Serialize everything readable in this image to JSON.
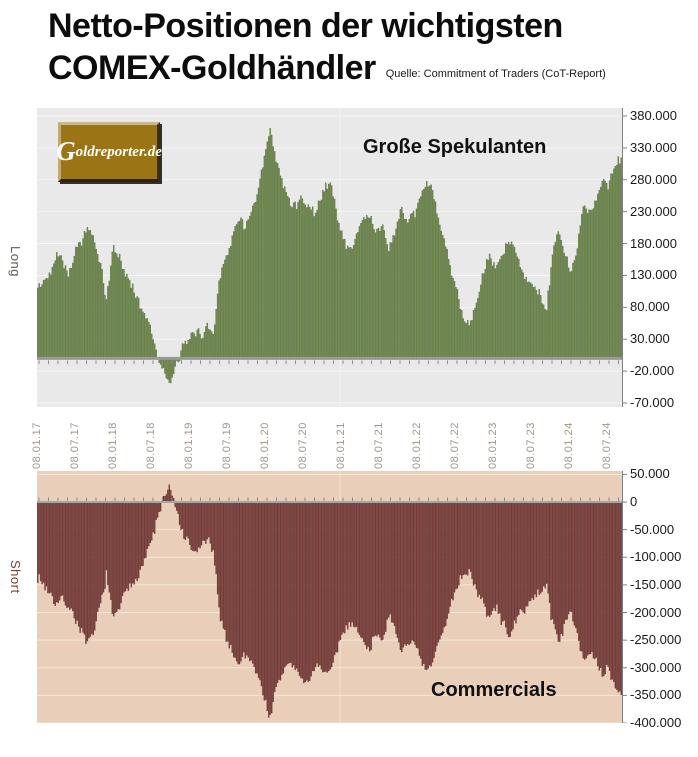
{
  "title": {
    "line1": "Netto-Positionen der wichtigsten",
    "line2": "COMEX-Goldhändler",
    "source": "Quelle: Commitment of Traders (CoT-Report)"
  },
  "logo": {
    "text_g": "G",
    "text_rest": "oldreporter.de"
  },
  "charts": {
    "top": {
      "side_label": "Long",
      "annotation": "Große Spekulanten",
      "bg_color": "#e9e9e9",
      "grid_color": "#f6f6f6",
      "bar_fill": "#708b4b",
      "bar_stroke": "#4d6434",
      "zero_line_color": "#999999",
      "axis_tick_labels": [
        "380.000",
        "330.000",
        "280.000",
        "230.000",
        "180.000",
        "130.000",
        "80.000",
        "30.000",
        "-20.000",
        "-70.000"
      ],
      "axis_tick_values": [
        380,
        330,
        280,
        230,
        180,
        130,
        80,
        30,
        -20,
        -70
      ]
    },
    "bottom": {
      "side_label": "Short",
      "annotation": "Commercials",
      "bg_color": "#e9cfb9",
      "grid_color": "#f5e7d8",
      "bar_fill": "#7d3d3b",
      "bar_stroke": "#5a2b2a",
      "zero_line_color": "#a6a6a6",
      "axis_tick_labels": [
        "50.000",
        "0",
        "-50.000",
        "-100.000",
        "-150.000",
        "-200.000",
        "-250.000",
        "-300.000",
        "-350.000",
        "-400.000"
      ],
      "axis_tick_values": [
        50,
        0,
        -50,
        -100,
        -150,
        -200,
        -250,
        -300,
        -350,
        -400
      ]
    }
  },
  "x_axis": {
    "labels": [
      "08.01.17",
      "08.07.17",
      "08.01.18",
      "08.07.18",
      "08.01.19",
      "08.07.19",
      "08.01.20",
      "08.07.20",
      "08.01.21",
      "08.07.21",
      "08.01.22",
      "08.07.22",
      "08.01.23",
      "08.07.23",
      "08.01.24",
      "08.07.24"
    ]
  },
  "chart_data": {
    "type": "bar",
    "unit": "contracts (values in thousands)",
    "frequency": "weekly bars; values below are monthly keypoints read from the chart",
    "months_start": "2017-01",
    "months_end": "2024-10",
    "x_range": [
      "08.01.17",
      "late 2024"
    ],
    "top_ylim_thousands": [
      -70,
      380
    ],
    "bottom_ylim_thousands": [
      -400,
      50
    ],
    "series": [
      {
        "name": "Große Spekulanten (net long)",
        "color": "#708b4b",
        "monthly_values_thousands": [
          110,
          120,
          133,
          167,
          155,
          130,
          170,
          185,
          205,
          185,
          145,
          90,
          175,
          160,
          130,
          117,
          91,
          70,
          50,
          10,
          -20,
          -42,
          -15,
          15,
          25,
          45,
          35,
          50,
          40,
          130,
          160,
          185,
          225,
          205,
          225,
          255,
          305,
          360,
          310,
          275,
          250,
          240,
          250,
          240,
          230,
          245,
          275,
          265,
          210,
          180,
          170,
          200,
          220,
          225,
          195,
          210,
          170,
          200,
          235,
          210,
          225,
          250,
          280,
          260,
          210,
          180,
          130,
          100,
          60,
          55,
          90,
          130,
          160,
          140,
          160,
          185,
          170,
          145,
          125,
          115,
          100,
          70,
          160,
          200,
          165,
          130,
          180,
          240,
          230,
          245,
          285,
          270,
          300,
          315
        ]
      },
      {
        "name": "Commercials (net short)",
        "color": "#7d3d3b",
        "monthly_values_thousands": [
          -135,
          -150,
          -165,
          -185,
          -175,
          -190,
          -210,
          -235,
          -260,
          -235,
          -185,
          -130,
          -215,
          -190,
          -165,
          -150,
          -130,
          -105,
          -75,
          -35,
          5,
          25,
          -10,
          -55,
          -75,
          -95,
          -80,
          -65,
          -95,
          -200,
          -245,
          -270,
          -295,
          -275,
          -285,
          -310,
          -350,
          -390,
          -340,
          -310,
          -290,
          -300,
          -320,
          -330,
          -300,
          -295,
          -315,
          -300,
          -255,
          -230,
          -215,
          -235,
          -255,
          -265,
          -235,
          -245,
          -210,
          -235,
          -270,
          -250,
          -260,
          -285,
          -310,
          -290,
          -250,
          -225,
          -175,
          -150,
          -125,
          -130,
          -160,
          -185,
          -210,
          -190,
          -215,
          -240,
          -225,
          -200,
          -185,
          -175,
          -165,
          -145,
          -215,
          -250,
          -225,
          -195,
          -235,
          -285,
          -275,
          -290,
          -315,
          -300,
          -335,
          -350
        ]
      }
    ]
  }
}
